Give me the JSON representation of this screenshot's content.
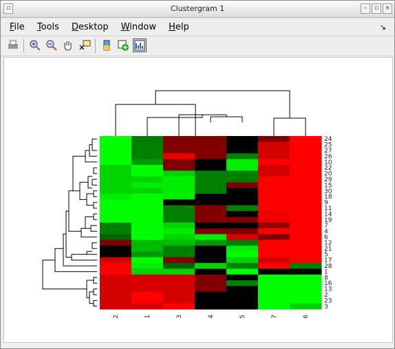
{
  "window": {
    "title": "Clustergram 1"
  },
  "menu": [
    "File",
    "Tools",
    "Desktop",
    "Window",
    "Help"
  ],
  "heatmap": {
    "columns": [
      "2",
      "1",
      "3",
      "4",
      "5",
      "7",
      "6"
    ],
    "rows": [
      "24",
      "25",
      "27",
      "26",
      "10",
      "22",
      "20",
      "29",
      "15",
      "30",
      "18",
      "9",
      "11",
      "14",
      "19",
      "7",
      "4",
      "6",
      "12",
      "21",
      "5",
      "17",
      "28",
      "1",
      "8",
      "16",
      "13",
      "2",
      "23",
      "3"
    ],
    "values": [
      [
        -3,
        -1.5,
        1.5,
        1.5,
        0,
        1.5,
        3
      ],
      [
        -3,
        -1.5,
        1.5,
        1.5,
        0,
        2.5,
        3
      ],
      [
        -3,
        -1.5,
        1.5,
        1.5,
        0,
        2.5,
        3
      ],
      [
        -3,
        -1.5,
        2.8,
        1.5,
        -1.5,
        2.5,
        3
      ],
      [
        -3,
        -1.8,
        1.5,
        0,
        -2.8,
        3,
        3
      ],
      [
        -2.5,
        -3,
        1.5,
        0,
        -2.8,
        2.5,
        3
      ],
      [
        -2.5,
        -3,
        -2.5,
        -1.5,
        -1.5,
        2.5,
        3
      ],
      [
        -2.5,
        -2.5,
        -2.8,
        -1.5,
        -1.5,
        3,
        3
      ],
      [
        -2.5,
        -2.8,
        -2.8,
        -1.5,
        1.5,
        3,
        3
      ],
      [
        -2.5,
        -2.5,
        -2.8,
        -1.5,
        0,
        3,
        3
      ],
      [
        -2.8,
        -3,
        -2.8,
        0,
        0,
        3,
        3
      ],
      [
        -3,
        -3,
        0,
        0,
        0,
        3,
        3
      ],
      [
        -3,
        -3,
        -1.5,
        1.5,
        -1.5,
        3,
        3
      ],
      [
        -3,
        -3,
        -1.5,
        1.5,
        0,
        2.8,
        3
      ],
      [
        -3,
        -3,
        -1.5,
        1.5,
        1.5,
        2.8,
        3
      ],
      [
        -1.5,
        -3,
        -2.5,
        0,
        0,
        1.8,
        3
      ],
      [
        -1.5,
        -3,
        -2.8,
        1.5,
        1.5,
        3,
        3
      ],
      [
        -1.2,
        -3,
        -2.5,
        -2.8,
        2.5,
        1.5,
        3
      ],
      [
        1.5,
        -2.2,
        -2.2,
        -1.8,
        -1.5,
        3,
        3
      ],
      [
        0,
        -2.2,
        -1.5,
        0,
        -2.8,
        3,
        3
      ],
      [
        0,
        -1.8,
        -1.5,
        0,
        -3,
        3,
        3
      ],
      [
        2.5,
        -3,
        1.5,
        0,
        -2.5,
        2.5,
        3
      ],
      [
        3,
        -2.8,
        -1.2,
        -2.5,
        -1.5,
        3,
        -1.5
      ],
      [
        3,
        -2.5,
        -2.5,
        0,
        -3,
        0,
        0
      ],
      [
        2.5,
        2.5,
        2.5,
        1.5,
        0,
        -3,
        -3
      ],
      [
        2.5,
        2.5,
        2.5,
        1.5,
        -1.5,
        -3,
        -3
      ],
      [
        2.5,
        2.5,
        2.5,
        1.5,
        0,
        -3,
        -3
      ],
      [
        2.5,
        3,
        2.5,
        0,
        0,
        -3,
        -3
      ],
      [
        2.5,
        3,
        2.5,
        0,
        0,
        -3,
        -3
      ],
      [
        2.5,
        2.5,
        3,
        0,
        0,
        -3,
        -2.5
      ]
    ]
  }
}
